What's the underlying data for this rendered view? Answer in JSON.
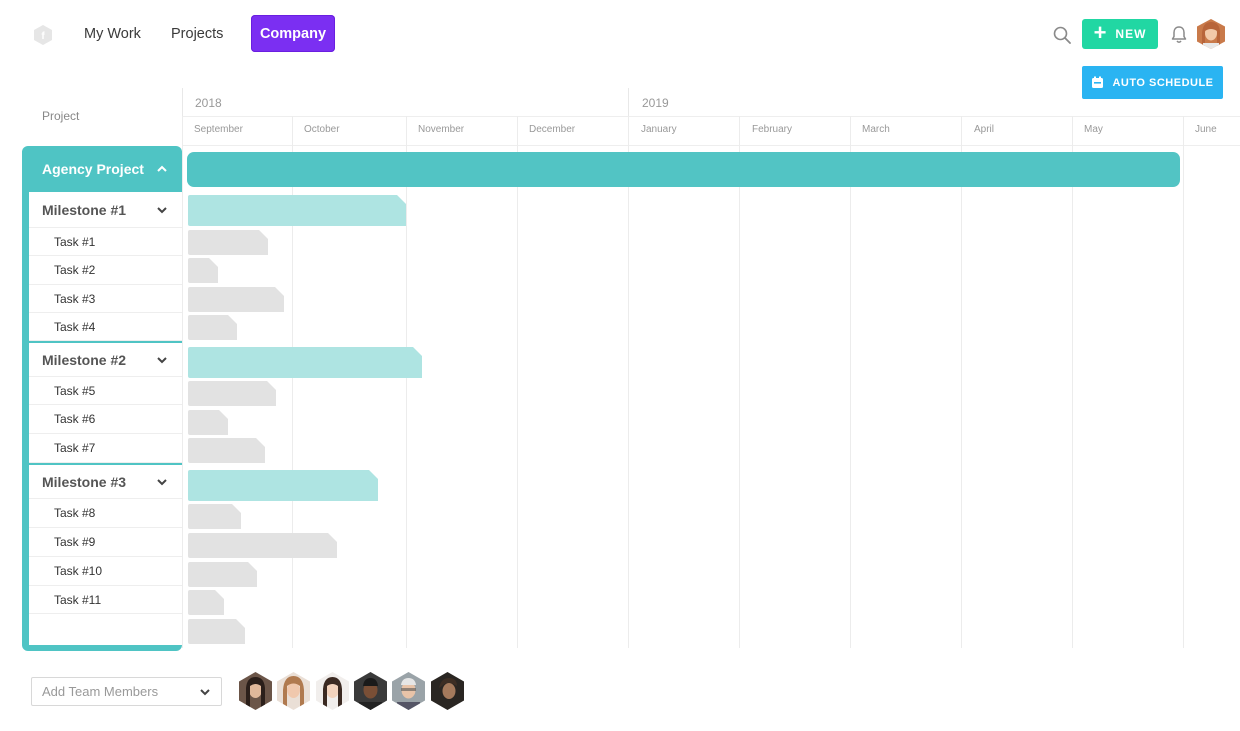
{
  "nav": {
    "items": [
      {
        "label": "My Work"
      },
      {
        "label": "Projects"
      },
      {
        "label": "Company"
      }
    ],
    "new_label": "NEW",
    "auto_schedule_label": "AUTO SCHEDULE",
    "colors": {
      "active_tab": "#7b2ff2",
      "new_button": "#21d7a3",
      "auto_schedule": "#2ab4f2",
      "accent": "#4fc4c4"
    },
    "icons": [
      "logo-icon",
      "search-icon",
      "plus-icon",
      "bell-icon",
      "user-avatar",
      "calendar-icon"
    ]
  },
  "left_panel": {
    "column_label": "Project",
    "project": "Agency Project",
    "milestones": [
      {
        "label": "Milestone #1",
        "tasks": [
          "Task #1",
          "Task #2",
          "Task #3",
          "Task #4"
        ]
      },
      {
        "label": "Milestone #2",
        "tasks": [
          "Task #5",
          "Task #6",
          "Task #7"
        ]
      },
      {
        "label": "Milestone #3",
        "tasks": [
          "Task #8",
          "Task #9",
          "Task #10",
          "Task #11"
        ]
      }
    ]
  },
  "timeline": {
    "years": [
      "2018",
      "2019"
    ],
    "months": [
      "September",
      "October",
      "November",
      "December",
      "January",
      "February",
      "March",
      "April",
      "May",
      "June"
    ]
  },
  "footer": {
    "add_members_placeholder": "Add Team Members",
    "member_count": 6
  }
}
